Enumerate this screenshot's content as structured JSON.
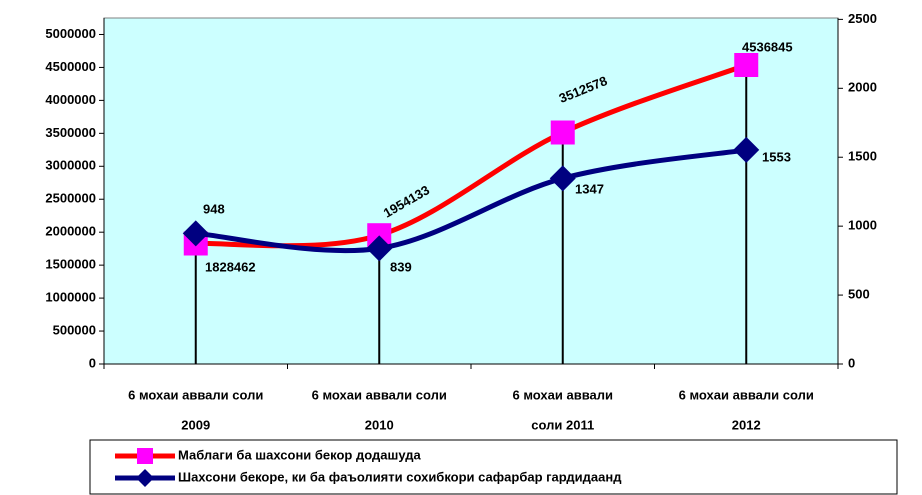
{
  "chart_data": {
    "type": "line",
    "categories": [
      [
        "6 мохаи аввали соли",
        "2009"
      ],
      [
        "6 мохаи аввали соли",
        "2010"
      ],
      [
        "6 мохаи аввали",
        "соли 2011"
      ],
      [
        "6 мохаи аввали соли",
        "2012"
      ]
    ],
    "series": [
      {
        "name": "Маблаги ба шахсони бекор додашуда",
        "color": "#ff0000",
        "marker_color": "#ff00ff",
        "marker": "square",
        "values": [
          1828462,
          1954133,
          3512578,
          4536845
        ]
      },
      {
        "name": "Шахсони бекоре, ки ба фаъолияти сохибкори сафарбар гардидаанд",
        "color": "#000080",
        "marker_color": "#000080",
        "marker": "diamond",
        "axis": "y2",
        "values": [
          948,
          839,
          1347,
          1553
        ]
      }
    ],
    "ylim": [
      0,
      5250000
    ],
    "yticks": [
      0,
      500000,
      1000000,
      1500000,
      2000000,
      2500000,
      3000000,
      3500000,
      4000000,
      4500000,
      5000000
    ],
    "y2lim": [
      0,
      2510
    ],
    "y2ticks": [
      0,
      500,
      1000,
      1500,
      2000,
      2500
    ],
    "background": "#ccffff",
    "drop_lines": true,
    "legend": "bottom"
  }
}
